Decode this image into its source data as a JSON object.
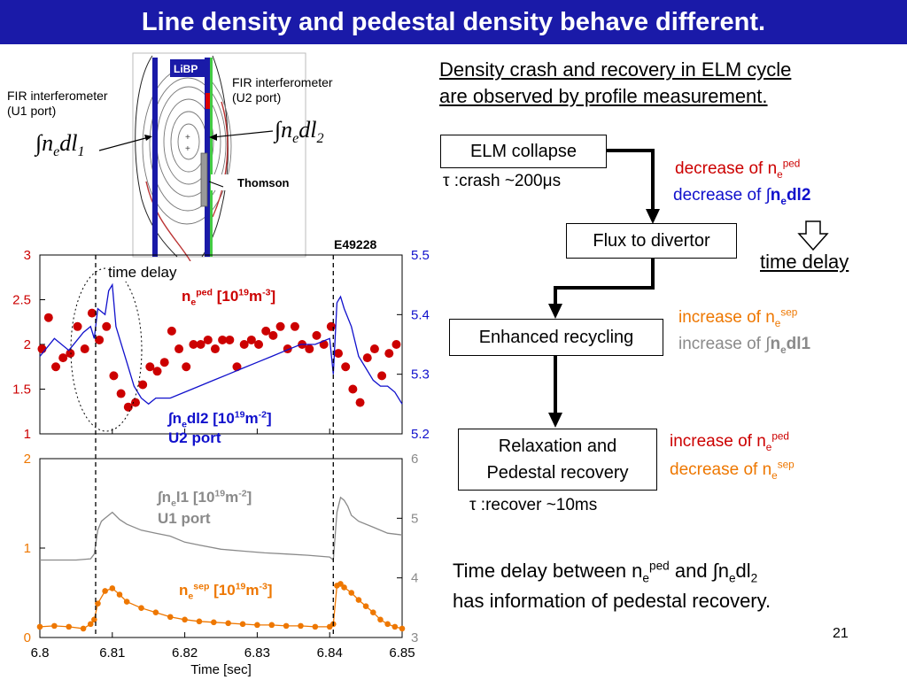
{
  "title": "Line density and pedestal density behave different.",
  "diagram": {
    "libp_label": "LiBP",
    "thomson_label": "Thomson",
    "fir_u1": [
      "FIR interferometer",
      "(U1 port)"
    ],
    "fir_u2": [
      "FIR interferometer",
      "(U2 port)"
    ],
    "integral_u1": {
      "sym": "∫",
      "var": "n",
      "sub_e": "e",
      "dl": "dl",
      "sub": "1"
    },
    "integral_u2": {
      "sym": "∫",
      "var": "n",
      "sub_e": "e",
      "dl": "dl",
      "sub": "2"
    }
  },
  "plot": {
    "shot": "E49228",
    "time_delay": "time delay",
    "top_left_ticks": [
      "3",
      "2.5",
      "2",
      "1.5",
      "1"
    ],
    "top_right_ticks": [
      "5.5",
      "5.4",
      "5.3",
      "5.2"
    ],
    "bottom_left_ticks": [
      "2",
      "1",
      "0"
    ],
    "bottom_right_ticks": [
      "6",
      "5",
      "4",
      "3"
    ],
    "x_ticks": [
      "6.8",
      "6.81",
      "6.82",
      "6.83",
      "6.84",
      "6.85"
    ],
    "xlabel": "Time [sec]",
    "ne_ped": {
      "n": "n",
      "e": "e",
      "sup": "ped",
      "unit": " [10",
      "exp": "19",
      "m": "m",
      "mexp": "-3",
      "end": "]"
    },
    "nedl2": {
      "int": "∫",
      "n": "n",
      "e": "e",
      "dl": "dl2 [10",
      "exp": "19",
      "m": "m",
      "mexp": "-2",
      "end": "]",
      "port": "U2 port"
    },
    "nel1": {
      "int": "∫",
      "n": "n",
      "e": "e",
      "dl": "l1 [10",
      "exp": "19",
      "m": "m",
      "mexp": "-2",
      "end": "]",
      "port": "U1 port"
    },
    "ne_sep": {
      "n": "n",
      "e": "e",
      "sup": "sep",
      "unit": " [10",
      "exp": "19",
      "m": "m",
      "mexp": "-3",
      "end": "]"
    }
  },
  "chart_data": {
    "type": "line",
    "xlabel": "Time [sec]",
    "xlim": [
      6.8,
      6.85
    ],
    "panels": [
      {
        "ylim_left": [
          1,
          3
        ],
        "ylim_right": [
          5.2,
          5.5
        ],
        "series": [
          {
            "name": "n_e^ped [10^19 m^-3]",
            "color": "#cc0000",
            "style": "markers",
            "x": [
              6.8003,
              6.8012,
              6.8022,
              6.8032,
              6.8042,
              6.8052,
              6.8062,
              6.8072,
              6.8082,
              6.8092,
              6.8102,
              6.8112,
              6.8122,
              6.8132,
              6.8142,
              6.8152,
              6.8162,
              6.8172,
              6.8182,
              6.8192,
              6.8202,
              6.8212,
              6.8222,
              6.8232,
              6.8242,
              6.8252,
              6.8262,
              6.8272,
              6.8282,
              6.8292,
              6.8302,
              6.8312,
              6.8322,
              6.8332,
              6.8342,
              6.8352,
              6.8362,
              6.8372,
              6.8382,
              6.8392,
              6.8402,
              6.8412,
              6.8422,
              6.8432,
              6.8442,
              6.8452,
              6.8462,
              6.8472,
              6.8482,
              6.8492
            ],
            "y": [
              1.95,
              2.3,
              1.75,
              1.85,
              1.9,
              2.2,
              1.95,
              2.35,
              2.05,
              2.2,
              1.65,
              1.45,
              1.3,
              1.35,
              1.55,
              1.75,
              1.7,
              1.8,
              2.15,
              1.95,
              1.75,
              2.0,
              2.0,
              2.05,
              1.95,
              2.05,
              2.05,
              1.75,
              2.0,
              2.05,
              2.0,
              2.15,
              2.1,
              2.2,
              1.95,
              2.2,
              2.0,
              1.95,
              2.1,
              2.0,
              2.2,
              1.9,
              1.75,
              1.5,
              1.35,
              1.85,
              1.95,
              1.65,
              1.9,
              2.0
            ]
          },
          {
            "name": "∫n_e dl2 [10^19 m^-2] U2 port",
            "color": "#1010cc",
            "axis": "right",
            "style": "line",
            "x": [
              6.8,
              6.802,
              6.804,
              6.806,
              6.807,
              6.8075,
              6.808,
              6.809,
              6.8095,
              6.81,
              6.8105,
              6.811,
              6.812,
              6.813,
              6.814,
              6.815,
              6.816,
              6.818,
              6.82,
              6.822,
              6.824,
              6.826,
              6.828,
              6.83,
              6.832,
              6.834,
              6.836,
              6.838,
              6.84,
              6.8405,
              6.841,
              6.8415,
              6.842,
              6.843,
              6.844,
              6.845,
              6.846,
              6.847,
              6.848,
              6.849,
              6.85
            ],
            "y": [
              5.33,
              5.36,
              5.34,
              5.37,
              5.38,
              5.36,
              5.41,
              5.4,
              5.44,
              5.45,
              5.38,
              5.36,
              5.32,
              5.28,
              5.26,
              5.25,
              5.26,
              5.26,
              5.27,
              5.28,
              5.29,
              5.3,
              5.31,
              5.32,
              5.33,
              5.34,
              5.35,
              5.35,
              5.36,
              5.3,
              5.42,
              5.43,
              5.41,
              5.38,
              5.33,
              5.31,
              5.29,
              5.28,
              5.28,
              5.27,
              5.25
            ]
          }
        ]
      },
      {
        "ylim_left": [
          0,
          2
        ],
        "ylim_right": [
          3,
          6
        ],
        "series": [
          {
            "name": "∫n_e l1 [10^19 m^-2] U1 port",
            "color": "#8a8a8a",
            "axis": "right",
            "style": "line",
            "x": [
              6.8,
              6.805,
              6.807,
              6.8075,
              6.808,
              6.8085,
              6.809,
              6.81,
              6.811,
              6.812,
              6.814,
              6.816,
              6.818,
              6.82,
              6.822,
              6.825,
              6.828,
              6.831,
              6.834,
              6.837,
              6.84,
              6.8405,
              6.841,
              6.8415,
              6.842,
              6.8425,
              6.843,
              6.844,
              6.846,
              6.848,
              6.85
            ],
            "y": [
              4.3,
              4.3,
              4.32,
              4.4,
              4.8,
              4.95,
              5.0,
              5.1,
              4.98,
              4.9,
              4.8,
              4.75,
              4.7,
              4.6,
              4.55,
              4.48,
              4.45,
              4.42,
              4.4,
              4.38,
              4.35,
              4.3,
              5.1,
              5.35,
              5.3,
              5.2,
              5.05,
              4.95,
              4.85,
              4.75,
              4.72
            ]
          },
          {
            "name": "n_e^sep [10^19 m^-3]",
            "color": "#ee7700",
            "style": "markers+line",
            "x": [
              6.8,
              6.802,
              6.804,
              6.806,
              6.807,
              6.8075,
              6.808,
              6.809,
              6.81,
              6.811,
              6.812,
              6.814,
              6.816,
              6.818,
              6.82,
              6.822,
              6.824,
              6.826,
              6.828,
              6.83,
              6.832,
              6.834,
              6.836,
              6.838,
              6.84,
              6.8405,
              6.841,
              6.8415,
              6.842,
              6.843,
              6.844,
              6.845,
              6.846,
              6.847,
              6.848,
              6.849,
              6.85
            ],
            "y": [
              0.12,
              0.13,
              0.12,
              0.1,
              0.15,
              0.2,
              0.38,
              0.52,
              0.55,
              0.48,
              0.4,
              0.33,
              0.28,
              0.23,
              0.2,
              0.18,
              0.17,
              0.16,
              0.15,
              0.14,
              0.14,
              0.13,
              0.13,
              0.12,
              0.12,
              0.15,
              0.58,
              0.6,
              0.56,
              0.5,
              0.42,
              0.35,
              0.28,
              0.2,
              0.15,
              0.12,
              0.1
            ]
          }
        ]
      }
    ],
    "vlines": [
      6.8077,
      6.8405
    ]
  },
  "right": {
    "heading1": "Density crash and recovery in ELM cycle",
    "heading2": "are observed by profile measurement.",
    "box_elm": "ELM collapse",
    "tau_crash": {
      "tau": "τ",
      "text": " :crash ~200",
      "mu": "μ",
      "unit": "s"
    },
    "dec_ped": {
      "text": "decrease of n",
      "sub": "e",
      "sup": "ped"
    },
    "dec_dl2": {
      "text": "decrease of ",
      "int": "∫",
      "n": "n",
      "e": "e",
      "dl": "dl2"
    },
    "box_flux": "Flux to divertor",
    "time_delay": "time delay",
    "box_recycling": "Enhanced recycling",
    "inc_sep": {
      "text": "increase of n",
      "sub": "e",
      "sup": "sep"
    },
    "inc_dl1": {
      "text": "increase of ",
      "int": "∫",
      "n": "n",
      "e": "e",
      "dl": "dl1"
    },
    "box_relax1": "Relaxation and",
    "box_relax2": "Pedestal recovery",
    "inc_ped": {
      "text": "increase of n",
      "sub": "e",
      "sup": "ped"
    },
    "dec_sep": {
      "text": "decrease of n",
      "sub": "e",
      "sup": "sep"
    },
    "tau_recover": {
      "tau": "τ",
      "text": " :recover ~10ms"
    },
    "conclusion1": {
      "a": "Time delay between n",
      "e": "e",
      "ped": "ped",
      "b": " and  ",
      "int": "∫",
      "n": "n",
      "e2": "e",
      "dl": "dl",
      "two": "2"
    },
    "conclusion2": "has information of pedestal recovery.",
    "page_number": "21"
  }
}
